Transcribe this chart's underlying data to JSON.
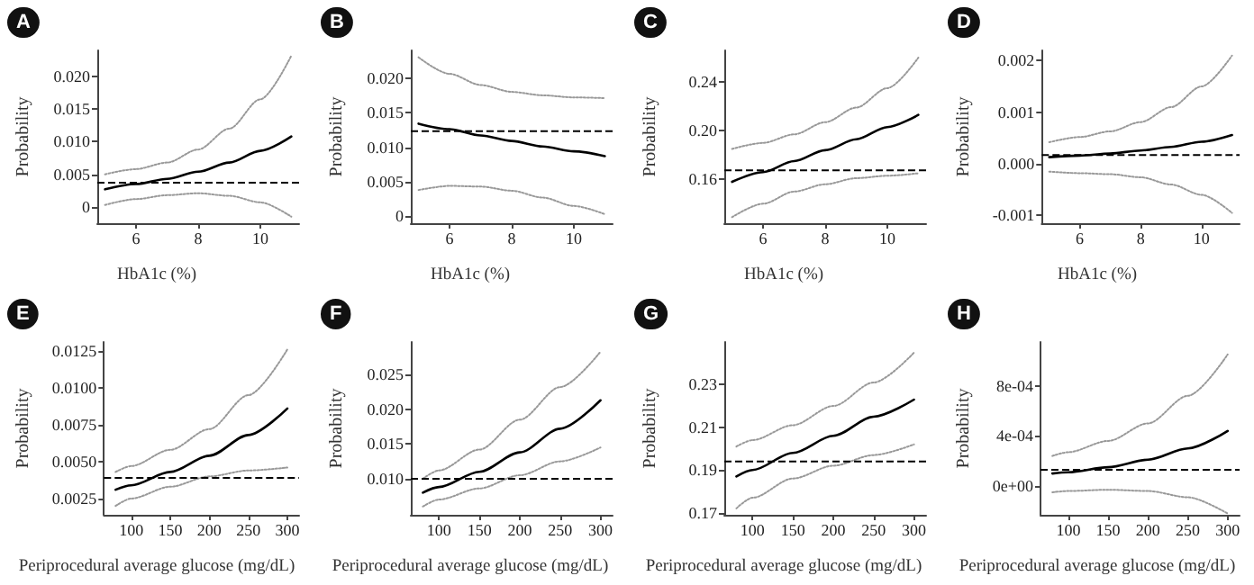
{
  "chart_data": [
    {
      "type": "line",
      "title": "A",
      "xlabel": "HbA1c (%)",
      "ylabel": "Probability",
      "x": [
        5,
        6,
        7,
        8,
        9,
        10,
        11
      ],
      "xlim": [
        4.75,
        11.25
      ],
      "xticks": [
        6,
        8,
        10
      ],
      "ylim": [
        -0.0025,
        0.024
      ],
      "yticks": [
        {
          "value": 0,
          "label": "0"
        },
        0.005,
        {
          "value": 0.01,
          "label": "0.010"
        },
        0.015,
        {
          "value": 0.02,
          "label": "0.020"
        }
      ],
      "series": [
        {
          "color": "#000000",
          "line_style": "solid",
          "values": [
            0.0027,
            0.0035,
            0.0043,
            0.0054,
            0.0068,
            0.0086,
            0.0108
          ]
        },
        {
          "color": "#999999",
          "line_style": "dotted",
          "values": [
            0.0003,
            0.0012,
            0.0018,
            0.0021,
            0.0017,
            0.0007,
            -0.0015
          ]
        },
        {
          "color": "#999999",
          "line_style": "dotted",
          "values": [
            0.005,
            0.0058,
            0.0068,
            0.0088,
            0.012,
            0.0165,
            0.0232
          ]
        }
      ],
      "ref_lines": [
        {
          "axis": "y",
          "value": 0.0037,
          "line_style": "dashed"
        }
      ]
    },
    {
      "type": "line",
      "title": "B",
      "xlabel": "HbA1c (%)",
      "ylabel": "Probability",
      "x": [
        5,
        6,
        7,
        8,
        9,
        10,
        11
      ],
      "xlim": [
        4.75,
        11.25
      ],
      "xticks": [
        6,
        8,
        10
      ],
      "ylim": [
        -0.001,
        0.024
      ],
      "yticks": [
        {
          "value": 0,
          "label": "0"
        },
        0.005,
        {
          "value": 0.01,
          "label": "0.010"
        },
        0.015,
        {
          "value": 0.02,
          "label": "0.020"
        }
      ],
      "series": [
        {
          "color": "#000000",
          "line_style": "solid",
          "values": [
            0.0134,
            0.0126,
            0.0117,
            0.0109,
            0.0101,
            0.0094,
            0.0087
          ]
        },
        {
          "color": "#999999",
          "line_style": "dotted",
          "values": [
            0.0038,
            0.0044,
            0.0043,
            0.0037,
            0.0027,
            0.0015,
            0.0003
          ]
        },
        {
          "color": "#999999",
          "line_style": "dotted",
          "values": [
            0.023,
            0.0206,
            0.019,
            0.018,
            0.0175,
            0.0172,
            0.0171
          ]
        }
      ],
      "ref_lines": [
        {
          "axis": "y",
          "value": 0.0123,
          "line_style": "dashed"
        }
      ]
    },
    {
      "type": "line",
      "title": "C",
      "xlabel": "HbA1c (%)",
      "ylabel": "Probability",
      "x": [
        5,
        6,
        7,
        8,
        9,
        10,
        11
      ],
      "xlim": [
        4.75,
        11.25
      ],
      "xticks": [
        6,
        8,
        10
      ],
      "ylim": [
        0.124,
        0.266
      ],
      "yticks": [
        0.16,
        {
          "value": 0.2,
          "label": "0.20"
        },
        0.24
      ],
      "series": [
        {
          "color": "#000000",
          "line_style": "solid",
          "values": [
            0.158,
            0.166,
            0.175,
            0.184,
            0.193,
            0.203,
            0.213
          ]
        },
        {
          "color": "#999999",
          "line_style": "dotted",
          "values": [
            0.129,
            0.14,
            0.15,
            0.156,
            0.161,
            0.163,
            0.165
          ]
        },
        {
          "color": "#999999",
          "line_style": "dotted",
          "values": [
            0.185,
            0.19,
            0.197,
            0.207,
            0.219,
            0.235,
            0.26
          ]
        }
      ],
      "ref_lines": [
        {
          "axis": "y",
          "value": 0.1675,
          "line_style": "dashed"
        }
      ]
    },
    {
      "type": "line",
      "title": "D",
      "xlabel": "HbA1c (%)",
      "ylabel": "Probability",
      "x": [
        5,
        6,
        7,
        8,
        9,
        10,
        11
      ],
      "xlim": [
        4.75,
        11.25
      ],
      "xticks": [
        6,
        8,
        10
      ],
      "ylim": [
        -0.00115,
        0.0022
      ],
      "yticks": [
        {
          "value": -0.001,
          "label": "-0.001"
        },
        {
          "value": 0,
          "label": "0.000"
        },
        0.001,
        0.002
      ],
      "series": [
        {
          "color": "#000000",
          "line_style": "solid",
          "values": [
            0.00013,
            0.00016,
            0.0002,
            0.00026,
            0.00033,
            0.00043,
            0.00056
          ]
        },
        {
          "color": "#999999",
          "line_style": "dotted",
          "values": [
            -0.00015,
            -0.00018,
            -0.0002,
            -0.00026,
            -0.0004,
            -0.0006,
            -0.00095
          ]
        },
        {
          "color": "#999999",
          "line_style": "dotted",
          "values": [
            0.00042,
            0.00052,
            0.00063,
            0.00081,
            0.0011,
            0.0015,
            0.0021
          ]
        }
      ],
      "ref_lines": [
        {
          "axis": "y",
          "value": 0.00017,
          "line_style": "dashed"
        }
      ]
    },
    {
      "type": "line",
      "title": "E",
      "xlabel": "Periprocedural average glucose (mg/dL)",
      "ylabel": "Probability",
      "x": [
        80,
        100,
        150,
        200,
        250,
        300
      ],
      "xlim": [
        65,
        315
      ],
      "xticks": [
        100,
        150,
        200,
        250,
        300
      ],
      "ylim": [
        0.0014,
        0.0131
      ],
      "yticks": [
        0.0025,
        {
          "value": 0.005,
          "label": "0.0050"
        },
        0.0075,
        {
          "value": 0.01,
          "label": "0.0100"
        },
        0.0125
      ],
      "series": [
        {
          "color": "#000000",
          "line_style": "solid",
          "values": [
            0.0031,
            0.0034,
            0.0043,
            0.0054,
            0.0068,
            0.0086
          ]
        },
        {
          "color": "#999999",
          "line_style": "dotted",
          "values": [
            0.002,
            0.0025,
            0.0033,
            0.004,
            0.0044,
            0.0046
          ]
        },
        {
          "color": "#999999",
          "line_style": "dotted",
          "values": [
            0.0043,
            0.0047,
            0.0058,
            0.0072,
            0.0095,
            0.0126
          ]
        }
      ],
      "ref_lines": [
        {
          "axis": "y",
          "value": 0.0039,
          "line_style": "dashed"
        }
      ]
    },
    {
      "type": "line",
      "title": "F",
      "xlabel": "Periprocedural average glucose (mg/dL)",
      "ylabel": "Probability",
      "x": [
        80,
        100,
        150,
        200,
        250,
        300
      ],
      "xlim": [
        65,
        315
      ],
      "xticks": [
        100,
        150,
        200,
        250,
        300
      ],
      "ylim": [
        0.0048,
        0.0297
      ],
      "yticks": [
        {
          "value": 0.01,
          "label": "0.010"
        },
        0.015,
        {
          "value": 0.02,
          "label": "0.020"
        },
        0.025
      ],
      "series": [
        {
          "color": "#000000",
          "line_style": "solid",
          "values": [
            0.008,
            0.0088,
            0.011,
            0.0138,
            0.0172,
            0.0213
          ]
        },
        {
          "color": "#999999",
          "line_style": "dotted",
          "values": [
            0.006,
            0.007,
            0.0086,
            0.0105,
            0.0125,
            0.0145
          ]
        },
        {
          "color": "#999999",
          "line_style": "dotted",
          "values": [
            0.01,
            0.0112,
            0.0142,
            0.0185,
            0.0232,
            0.0283
          ]
        }
      ],
      "ref_lines": [
        {
          "axis": "y",
          "value": 0.01,
          "line_style": "dashed"
        }
      ]
    },
    {
      "type": "line",
      "title": "G",
      "xlabel": "Periprocedural average glucose (mg/dL)",
      "ylabel": "Probability",
      "x": [
        80,
        100,
        150,
        200,
        250,
        300
      ],
      "xlim": [
        65,
        315
      ],
      "xticks": [
        100,
        150,
        200,
        250,
        300
      ],
      "ylim": [
        0.169,
        0.25
      ],
      "yticks": [
        0.17,
        0.19,
        0.21,
        0.23
      ],
      "series": [
        {
          "color": "#000000",
          "line_style": "solid",
          "values": [
            0.187,
            0.19,
            0.198,
            0.206,
            0.215,
            0.223
          ]
        },
        {
          "color": "#999999",
          "line_style": "dotted",
          "values": [
            0.172,
            0.177,
            0.186,
            0.192,
            0.197,
            0.202
          ]
        },
        {
          "color": "#999999",
          "line_style": "dotted",
          "values": [
            0.201,
            0.204,
            0.211,
            0.22,
            0.231,
            0.245
          ]
        }
      ],
      "ref_lines": [
        {
          "axis": "y",
          "value": 0.194,
          "line_style": "dashed"
        }
      ]
    },
    {
      "type": "line",
      "title": "H",
      "xlabel": "Periprocedural average glucose (mg/dL)",
      "ylabel": "Probability",
      "x": [
        80,
        100,
        150,
        200,
        250,
        300
      ],
      "xlim": [
        65,
        315
      ],
      "xticks": [
        100,
        150,
        200,
        250,
        300
      ],
      "ylim": [
        -0.00023,
        0.00115
      ],
      "yticks": [
        {
          "value": 0,
          "label": "0e+00"
        },
        {
          "value": 0.0004,
          "label": "4e-04"
        },
        {
          "value": 0.0008,
          "label": "8e-04"
        }
      ],
      "series": [
        {
          "color": "#000000",
          "line_style": "solid",
          "values": [
            0.0001,
            0.00011,
            0.00015,
            0.00021,
            0.0003,
            0.00044
          ]
        },
        {
          "color": "#999999",
          "line_style": "dotted",
          "values": [
            -5e-05,
            -4e-05,
            -3e-05,
            -4e-05,
            -9e-05,
            -0.00022
          ]
        },
        {
          "color": "#999999",
          "line_style": "dotted",
          "values": [
            0.00024,
            0.00027,
            0.00036,
            0.0005,
            0.00072,
            0.00105
          ]
        }
      ],
      "ref_lines": [
        {
          "axis": "y",
          "value": 0.00013,
          "line_style": "dashed"
        }
      ]
    }
  ]
}
